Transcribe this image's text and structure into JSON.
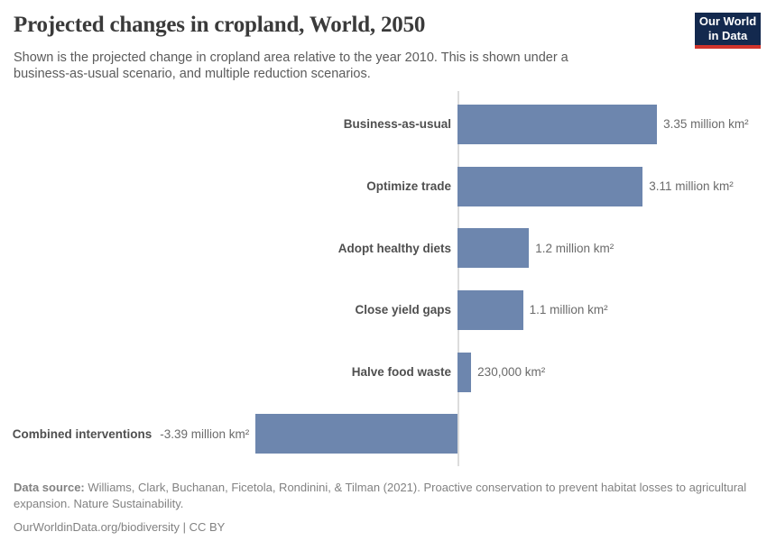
{
  "header": {
    "title": "Projected changes in cropland, World, 2050",
    "subtitle_lines": [
      "Shown is the projected change in cropland area relative to the year 2010. This is shown under a",
      "business-as-usual scenario, and multiple reduction scenarios."
    ],
    "logo": {
      "line1": "Our World",
      "line2": "in Data",
      "bg_color": "#13294e",
      "accent_color": "#d0342c"
    }
  },
  "chart_data": {
    "type": "bar",
    "orientation": "horizontal",
    "title": "Projected changes in cropland, World, 2050",
    "unit": "million km²",
    "categories": [
      "Business-as-usual",
      "Optimize trade",
      "Adopt healthy diets",
      "Close yield gaps",
      "Halve food waste",
      "Combined interventions"
    ],
    "values": [
      3.35,
      3.11,
      1.2,
      1.1,
      0.23,
      -3.39
    ],
    "value_labels": [
      "3.35 million km²",
      "3.11 million km²",
      "1.2 million km²",
      "1.1 million km²",
      "230,000 km²",
      "-3.39 million km²"
    ],
    "baseline": 0,
    "xlim": [
      -3.5,
      3.5
    ],
    "grid": false,
    "legend": false,
    "bar_color": "#6d86ae",
    "axis_color": "#dcdcdc"
  },
  "footer": {
    "source_label": "Data source:",
    "source_text": "Williams, Clark, Buchanan, Ficetola, Rondinini, & Tilman (2021). Proactive conservation to prevent habitat losses to agricultural expansion. Nature Sustainability.",
    "license_line": "OurWorldinData.org/biodiversity | CC BY"
  }
}
